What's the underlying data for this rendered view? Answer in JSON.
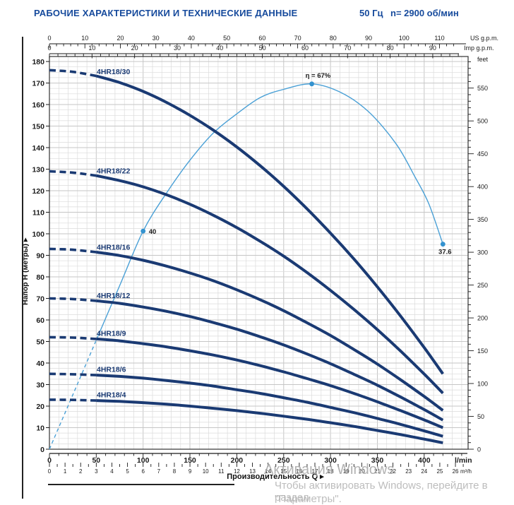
{
  "header": {
    "title": "РАБОЧИЕ ХАРАКТЕРИСТИКИ И ТЕХНИЧЕСКИЕ ДАННЫЕ",
    "frequency": "50 Гц",
    "speed": "n= 2900 об/мин"
  },
  "watermark": {
    "line1": "Активация Windows",
    "line2": "Чтобы активировать Windows, перейдите в раздел",
    "line3": "\"Параметры\"."
  },
  "colors": {
    "header_blue": "#164a9c",
    "curve_navy": "#1a3a73",
    "efficiency_blue": "#4aa0d6",
    "marker_blue": "#3392cf",
    "grid_minor": "#dbdbdb",
    "grid_major": "#c6c6c6",
    "border": "#333333",
    "text": "#1a1a1a",
    "watermark_gray": "#b5b5b5"
  },
  "chart_data": {
    "type": "line",
    "title": "РАБОЧИЕ ХАРАКТЕРИСТИКИ И ТЕХНИЧЕСКИЕ ДАННЫЕ",
    "xlabel": "Производительность Q  ▸",
    "ylabel": "Напор H (метры)  ▸",
    "x_range_lmin": [
      0,
      447
    ],
    "y_range_m": [
      0,
      182
    ],
    "grid": "on",
    "axes": {
      "top_us_gpm": {
        "unit": "US g.p.m.",
        "tick_labels": [
          0,
          10,
          20,
          30,
          40,
          50,
          60,
          70,
          80,
          90,
          100,
          110
        ]
      },
      "top_imp_gpm": {
        "unit": "Imp g.p.m.",
        "tick_labels": [
          0,
          10,
          20,
          30,
          40,
          50,
          60,
          70,
          80,
          90
        ]
      },
      "left_head_m": {
        "unit": "",
        "tick_labels": [
          0,
          10,
          20,
          30,
          40,
          50,
          60,
          70,
          80,
          90,
          100,
          110,
          120,
          130,
          140,
          150,
          160,
          170,
          180
        ]
      },
      "right_feet": {
        "unit": "feet",
        "tick_labels": [
          0,
          50,
          100,
          150,
          200,
          250,
          300,
          350,
          400,
          450,
          500,
          550
        ]
      },
      "bottom_lmin": {
        "unit": "l/min",
        "tick_labels": [
          0,
          50,
          100,
          150,
          200,
          250,
          300,
          350,
          400
        ]
      },
      "bottom_m3h": {
        "unit": "m³/h",
        "tick_labels": [
          0,
          1,
          2,
          3,
          4,
          5,
          6,
          7,
          8,
          9,
          10,
          11,
          12,
          13,
          14,
          15,
          16,
          17,
          18,
          19,
          20,
          21,
          22,
          23,
          24,
          25,
          26
        ]
      }
    },
    "q_values": [
      0,
      25,
      50,
      75,
      100,
      125,
      150,
      175,
      200,
      225,
      250,
      275,
      300,
      325,
      350,
      375,
      400,
      420
    ],
    "dashed_until_q": 50,
    "series": [
      {
        "name": "4HR18/30",
        "head_m": [
          176,
          175.2,
          173.3,
          170.2,
          166.1,
          161,
          155,
          148.1,
          140.3,
          131.6,
          122,
          111.6,
          100.3,
          88.3,
          75.4,
          61.7,
          47.2,
          35
        ]
      },
      {
        "name": "4HR18/22",
        "head_m": [
          129,
          128.4,
          127,
          124.7,
          121.8,
          118.1,
          113.7,
          108.6,
          102.9,
          96.5,
          89.6,
          82,
          73.7,
          64.9,
          55.5,
          45.5,
          34.9,
          26
        ]
      },
      {
        "name": "4HR18/16",
        "head_m": [
          93,
          92.6,
          91.5,
          89.9,
          87.7,
          85,
          81.8,
          78.2,
          74,
          69.4,
          64.3,
          58.7,
          52.8,
          46.3,
          39.5,
          32.2,
          24.5,
          18
        ]
      },
      {
        "name": "4HR18/12",
        "head_m": [
          70,
          69.7,
          68.9,
          67.7,
          66,
          64,
          61.6,
          58.8,
          55.7,
          52.2,
          48.4,
          44.2,
          39.7,
          34.8,
          29.7,
          24.2,
          18.4,
          13.5
        ]
      },
      {
        "name": "4HR18/9",
        "head_m": [
          52,
          51.8,
          51.2,
          50.3,
          49,
          47.5,
          45.7,
          43.7,
          41.4,
          38.8,
          35.9,
          32.8,
          29.5,
          25.9,
          22,
          17.9,
          13.6,
          10
        ]
      },
      {
        "name": "4HR18/6",
        "head_m": [
          35,
          34.8,
          34.4,
          33.8,
          33,
          31.9,
          30.7,
          29.3,
          27.6,
          25.9,
          23.9,
          21.8,
          19.4,
          17,
          14.3,
          11.5,
          8.5,
          6
        ]
      },
      {
        "name": "4HR18/4",
        "head_m": [
          23,
          22.9,
          22.6,
          22.2,
          21.6,
          20.9,
          20,
          19,
          17.9,
          16.7,
          15.3,
          13.9,
          12.3,
          10.6,
          8.7,
          6.8,
          4.7,
          3
        ]
      }
    ],
    "efficiency_curve": {
      "name": "η",
      "points_q_eta": [
        [
          0,
          0
        ],
        [
          25,
          10
        ],
        [
          50,
          20
        ],
        [
          75,
          30
        ],
        [
          100,
          40
        ],
        [
          125,
          47
        ],
        [
          150,
          53
        ],
        [
          175,
          58
        ],
        [
          200,
          61.5
        ],
        [
          225,
          64.5
        ],
        [
          250,
          66
        ],
        [
          280,
          67
        ],
        [
          310,
          65.5
        ],
        [
          340,
          62
        ],
        [
          370,
          56
        ],
        [
          390,
          50
        ],
        [
          405,
          45
        ],
        [
          420,
          37.6
        ]
      ],
      "markers": [
        {
          "q": 100,
          "eta": 40,
          "label": "40"
        },
        {
          "q": 280,
          "eta": 67,
          "label": "η = 67%"
        },
        {
          "q": 420,
          "eta": 37.6,
          "label": "37.6"
        }
      ]
    }
  }
}
